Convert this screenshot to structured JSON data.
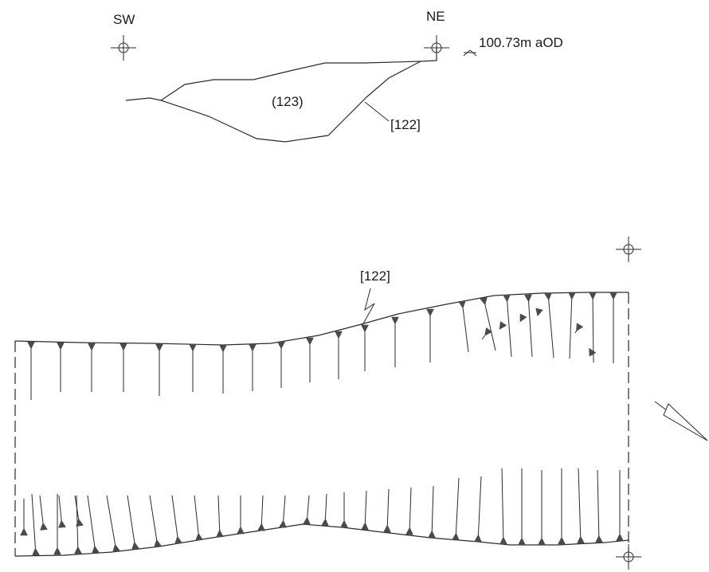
{
  "section": {
    "orientation_left": "SW",
    "orientation_right": "NE",
    "datum_level": "100.73m aOD",
    "fill_context": "(123)",
    "cut_context": "[122]"
  },
  "plan": {
    "cut_context": "[122]"
  },
  "icons": [
    "survey-point-icon",
    "datum-level-icon",
    "north-arrow-icon",
    "hachure-arrowhead-icon"
  ],
  "colors": {
    "line": "#2a2a2a",
    "hachure_head": "#4a4a4a",
    "background": "#ffffff"
  }
}
